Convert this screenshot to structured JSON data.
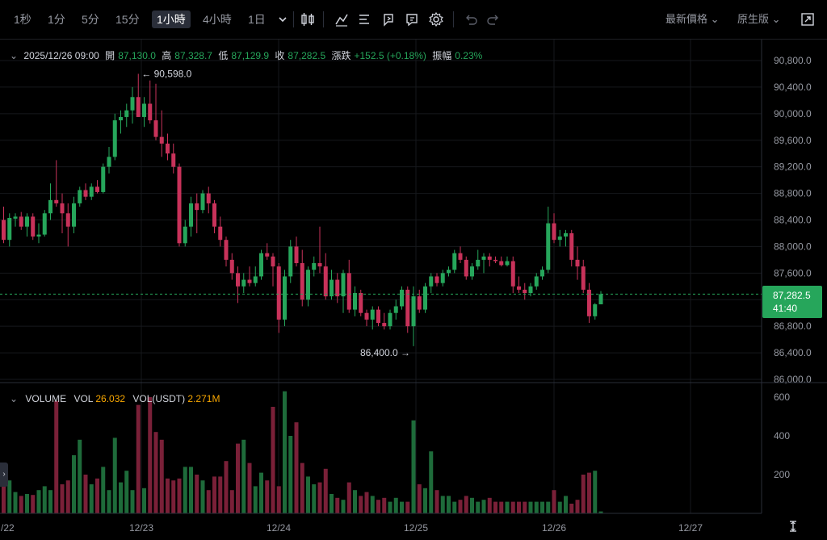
{
  "toolbar": {
    "intervals": [
      "1秒",
      "1分",
      "5分",
      "15分",
      "1小時",
      "4小時",
      "1日"
    ],
    "active_interval": "1小時",
    "icons": [
      "chevron-down-icon",
      "candlestick-type-icon",
      "indicators-icon",
      "list-icon",
      "replay-icon",
      "alert-icon",
      "settings-icon",
      "undo-icon",
      "redo-icon",
      "fullscreen-icon"
    ],
    "price_type": "最新價格",
    "view_mode": "原生版"
  },
  "legend": {
    "datetime": "2025/12/26 09:00",
    "open_label": "開",
    "open": "87,130.0",
    "high_label": "高",
    "high": "87,328.7",
    "low_label": "低",
    "low": "87,129.9",
    "close_label": "收",
    "close": "87,282.5",
    "change_label": "漲跌",
    "change": "+152.5 (+0.18%)",
    "amplitude_label": "振幅",
    "amplitude": "0.23%"
  },
  "volume_legend": {
    "title": "VOLUME",
    "vol_label": "VOL",
    "vol": "26.032",
    "vol_usdt_label": "VOL(USDT)",
    "vol_usdt": "2.271M"
  },
  "price_tag": {
    "price": "87,282.5",
    "countdown": "41:40"
  },
  "annotations": {
    "max": "90,598.0",
    "min": "86,400.0"
  },
  "colors": {
    "up": "#26a65b",
    "down": "#c8325a",
    "up_vol": "#1e6b3a",
    "down_vol": "#7a2038",
    "grid": "#16181c",
    "text": "#9598a1"
  },
  "chart_data": {
    "type": "candlestick",
    "price_axis_ticks": [
      "90,800.0",
      "90,400.0",
      "90,000.0",
      "89,600.0",
      "89,200.0",
      "88,800.0",
      "88,400.0",
      "88,000.0",
      "87,600.0",
      "87,200.0",
      "86,800.0",
      "86,400.0",
      "86,000.0"
    ],
    "volume_axis_ticks": [
      "600",
      "400",
      "200"
    ],
    "x_axis_labels": [
      "/22",
      "12/23",
      "12/24",
      "12/25",
      "12/26",
      "12/27"
    ],
    "price_range": [
      86000,
      90800
    ],
    "volume_range": [
      0,
      600
    ],
    "candles": [
      [
        88400,
        88600,
        88050,
        88100
      ],
      [
        88100,
        88500,
        88000,
        88430
      ],
      [
        88420,
        88500,
        88300,
        88450
      ],
      [
        88450,
        88520,
        88250,
        88300
      ],
      [
        88300,
        88500,
        88150,
        88450
      ],
      [
        88450,
        88500,
        88100,
        88150
      ],
      [
        88150,
        88350,
        88050,
        88180
      ],
      [
        88180,
        88550,
        88150,
        88500
      ],
      [
        88500,
        88950,
        88400,
        88700
      ],
      [
        88700,
        89300,
        88600,
        88650
      ],
      [
        88650,
        88800,
        88200,
        88500
      ],
      [
        88500,
        88650,
        88000,
        88300
      ],
      [
        88300,
        88750,
        88200,
        88650
      ],
      [
        88650,
        88900,
        88600,
        88850
      ],
      [
        88850,
        88950,
        88700,
        88750
      ],
      [
        88750,
        88950,
        88700,
        88900
      ],
      [
        88900,
        89000,
        88800,
        88820
      ],
      [
        88820,
        89250,
        88800,
        89200
      ],
      [
        89200,
        89500,
        89100,
        89350
      ],
      [
        89350,
        90000,
        89300,
        89900
      ],
      [
        89900,
        90050,
        89700,
        89950
      ],
      [
        89950,
        90150,
        89800,
        90050
      ],
      [
        90050,
        90400,
        89850,
        90250
      ],
      [
        90250,
        90600,
        89950,
        89950
      ],
      [
        89950,
        90250,
        89800,
        90150
      ],
      [
        90150,
        90500,
        89850,
        89900
      ],
      [
        89900,
        90450,
        89600,
        89650
      ],
      [
        89650,
        90050,
        89350,
        89550
      ],
      [
        89550,
        89700,
        89300,
        89400
      ],
      [
        89400,
        89550,
        89100,
        89200
      ],
      [
        89200,
        89250,
        88000,
        88050
      ],
      [
        88050,
        88400,
        88000,
        88300
      ],
      [
        88300,
        88750,
        88150,
        88650
      ],
      [
        88650,
        88800,
        88200,
        88550
      ],
      [
        88550,
        88850,
        88500,
        88800
      ],
      [
        88800,
        88900,
        88500,
        88650
      ],
      [
        88650,
        88700,
        88200,
        88300
      ],
      [
        88300,
        88450,
        88000,
        88100
      ],
      [
        88100,
        88150,
        87700,
        87800
      ],
      [
        87800,
        87900,
        87500,
        87600
      ],
      [
        87600,
        87700,
        87150,
        87400
      ],
      [
        87400,
        87600,
        87300,
        87500
      ],
      [
        87500,
        87700,
        87400,
        87450
      ],
      [
        87450,
        87700,
        87400,
        87550
      ],
      [
        87550,
        87950,
        87500,
        87900
      ],
      [
        87900,
        88050,
        87800,
        87850
      ],
      [
        87850,
        87900,
        87400,
        87700
      ],
      [
        87700,
        87750,
        86700,
        86900
      ],
      [
        86900,
        87650,
        86800,
        87550
      ],
      [
        87550,
        88100,
        87450,
        88000
      ],
      [
        88000,
        88150,
        87700,
        87750
      ],
      [
        87750,
        87950,
        87100,
        87200
      ],
      [
        87200,
        87700,
        87100,
        87650
      ],
      [
        87650,
        87850,
        87550,
        87750
      ],
      [
        87750,
        88300,
        87600,
        87700
      ],
      [
        87700,
        87900,
        87200,
        87250
      ],
      [
        87250,
        87650,
        87200,
        87500
      ],
      [
        87500,
        87600,
        87150,
        87250
      ],
      [
        87250,
        87650,
        87000,
        87600
      ],
      [
        87600,
        87800,
        87000,
        87050
      ],
      [
        87050,
        87400,
        86950,
        87300
      ],
      [
        87300,
        87350,
        86950,
        87000
      ],
      [
        87000,
        87050,
        86800,
        86900
      ],
      [
        86900,
        87100,
        86750,
        87050
      ],
      [
        87050,
        87100,
        86800,
        86850
      ],
      [
        86850,
        87000,
        86750,
        86800
      ],
      [
        86800,
        87050,
        86750,
        87000
      ],
      [
        87000,
        87200,
        86900,
        87100
      ],
      [
        87100,
        87400,
        87050,
        87350
      ],
      [
        87350,
        87400,
        86700,
        86800
      ],
      [
        86800,
        87400,
        86500,
        87250
      ],
      [
        87250,
        87350,
        87000,
        87050
      ],
      [
        87050,
        87450,
        87000,
        87400
      ],
      [
        87400,
        87600,
        87300,
        87550
      ],
      [
        87550,
        87600,
        87400,
        87450
      ],
      [
        87450,
        87650,
        87400,
        87600
      ],
      [
        87600,
        87700,
        87550,
        87650
      ],
      [
        87650,
        87950,
        87600,
        87900
      ],
      [
        87900,
        88000,
        87750,
        87800
      ],
      [
        87800,
        87850,
        87500,
        87550
      ],
      [
        87550,
        87750,
        87500,
        87700
      ],
      [
        87700,
        87950,
        87650,
        87800
      ],
      [
        87800,
        87900,
        87600,
        87850
      ],
      [
        87850,
        87900,
        87700,
        87800
      ],
      [
        87800,
        87850,
        87750,
        87780
      ],
      [
        87780,
        87850,
        87700,
        87720
      ],
      [
        87720,
        87850,
        87700,
        87780
      ],
      [
        87780,
        87850,
        87300,
        87400
      ],
      [
        87400,
        87550,
        87300,
        87350
      ],
      [
        87350,
        87450,
        87200,
        87300
      ],
      [
        87300,
        87450,
        87250,
        87400
      ],
      [
        87400,
        87600,
        87350,
        87550
      ],
      [
        87550,
        87700,
        87500,
        87650
      ],
      [
        87650,
        88600,
        87600,
        88350
      ],
      [
        88350,
        88500,
        88050,
        88100
      ],
      [
        88100,
        88250,
        88000,
        88150
      ],
      [
        88150,
        88250,
        88000,
        88200
      ],
      [
        88200,
        88250,
        87700,
        87800
      ],
      [
        87800,
        88000,
        87500,
        87700
      ],
      [
        87700,
        87800,
        87300,
        87350
      ],
      [
        87350,
        87450,
        86850,
        86950
      ],
      [
        86950,
        87150,
        86900,
        87130
      ],
      [
        87130,
        87329,
        87130,
        87283
      ]
    ],
    "volumes": [
      160,
      170,
      110,
      90,
      100,
      95,
      120,
      140,
      120,
      580,
      150,
      170,
      300,
      380,
      200,
      150,
      180,
      240,
      120,
      390,
      160,
      220,
      120,
      560,
      130,
      600,
      420,
      380,
      180,
      170,
      180,
      240,
      240,
      200,
      170,
      120,
      190,
      190,
      270,
      120,
      360,
      380,
      260,
      140,
      210,
      170,
      550,
      140,
      630,
      400,
      470,
      260,
      190,
      150,
      160,
      230,
      100,
      80,
      70,
      160,
      120,
      90,
      110,
      90,
      70,
      80,
      60,
      80,
      60,
      60,
      480,
      150,
      130,
      320,
      120,
      90,
      90,
      60,
      70,
      90,
      80,
      60,
      70,
      80,
      60,
      60,
      60,
      60,
      60,
      60,
      60,
      60,
      60,
      60,
      120,
      60,
      90,
      50,
      70,
      200,
      210,
      220,
      10
    ]
  }
}
